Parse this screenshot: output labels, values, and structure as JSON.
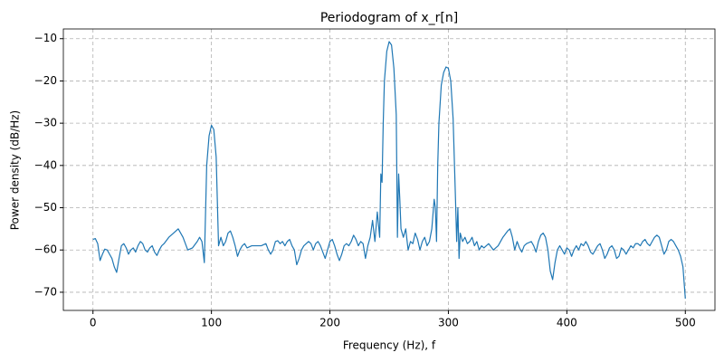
{
  "chart_data": {
    "type": "line",
    "title": "Periodogram of x_r[n]",
    "xlabel": "Frequency (Hz), f",
    "ylabel": "Power density (dB/Hz)",
    "color": "#1f77b4",
    "grid": true,
    "xlim": [
      -25,
      525
    ],
    "ylim": [
      -74.3,
      -7.7
    ],
    "xticks": [
      0,
      100,
      200,
      300,
      400,
      500
    ],
    "yticks": [
      {
        "value": -70,
        "label": "−70"
      },
      {
        "value": -60,
        "label": "−60"
      },
      {
        "value": -50,
        "label": "−50"
      },
      {
        "value": -40,
        "label": "−40"
      },
      {
        "value": -30,
        "label": "−30"
      },
      {
        "value": -20,
        "label": "−20"
      },
      {
        "value": -10,
        "label": "−10"
      }
    ],
    "x": [
      0,
      2,
      4,
      6,
      8,
      10,
      12,
      14,
      16,
      18,
      20,
      22,
      24,
      26,
      28,
      30,
      32,
      34,
      36,
      38,
      40,
      42,
      44,
      46,
      48,
      50,
      52,
      54,
      56,
      58,
      60,
      64,
      68,
      72,
      76,
      80,
      84,
      88,
      90,
      92,
      94,
      96,
      98,
      100,
      102,
      104,
      106,
      108,
      110,
      112,
      114,
      116,
      118,
      120,
      122,
      124,
      126,
      128,
      130,
      134,
      138,
      142,
      146,
      148,
      150,
      152,
      154,
      156,
      158,
      160,
      162,
      164,
      166,
      168,
      170,
      172,
      174,
      176,
      178,
      180,
      182,
      184,
      186,
      188,
      190,
      192,
      194,
      196,
      198,
      200,
      202,
      204,
      206,
      208,
      210,
      212,
      214,
      216,
      218,
      220,
      222,
      224,
      226,
      228,
      230,
      232,
      234,
      236,
      238,
      240,
      242,
      243,
      244,
      245,
      246,
      248,
      250,
      252,
      254,
      256,
      257,
      258,
      259,
      260,
      262,
      264,
      266,
      268,
      270,
      272,
      274,
      276,
      278,
      280,
      282,
      284,
      286,
      288,
      289,
      290,
      291,
      292,
      294,
      296,
      298,
      300,
      302,
      304,
      306,
      307,
      308,
      309,
      310,
      312,
      314,
      316,
      318,
      320,
      322,
      324,
      326,
      328,
      330,
      334,
      338,
      342,
      346,
      350,
      352,
      354,
      356,
      358,
      360,
      362,
      364,
      366,
      370,
      372,
      374,
      376,
      378,
      380,
      382,
      384,
      386,
      388,
      390,
      392,
      394,
      396,
      398,
      400,
      402,
      404,
      406,
      408,
      410,
      412,
      414,
      416,
      418,
      420,
      422,
      424,
      426,
      428,
      430,
      432,
      434,
      436,
      438,
      440,
      442,
      444,
      446,
      448,
      450,
      452,
      454,
      456,
      458,
      460,
      462,
      464,
      466,
      468,
      470,
      472,
      474,
      476,
      478,
      480,
      482,
      484,
      486,
      488,
      490,
      492,
      494,
      496,
      498,
      500
    ],
    "values": [
      -57.5,
      -57.3,
      -58.5,
      -62.5,
      -61,
      -59.8,
      -60,
      -61,
      -62,
      -64,
      -65.3,
      -62,
      -59,
      -58.5,
      -59.5,
      -61,
      -60,
      -59.5,
      -60.5,
      -59,
      -58,
      -58.5,
      -60,
      -60.5,
      -59.5,
      -59,
      -60.5,
      -61.3,
      -60,
      -59,
      -58.5,
      -57,
      -56,
      -55,
      -57,
      -60,
      -59.5,
      -58,
      -57,
      -58,
      -63,
      -40,
      -33,
      -30.5,
      -31.5,
      -38,
      -59,
      -57,
      -59,
      -58,
      -56,
      -55.5,
      -57,
      -59,
      -61.5,
      -60,
      -59,
      -58.5,
      -59.5,
      -59,
      -59,
      -59,
      -58.5,
      -60,
      -61,
      -60,
      -58,
      -57.8,
      -58.5,
      -58,
      -59,
      -58,
      -57.5,
      -59,
      -60,
      -63.5,
      -62,
      -60,
      -59,
      -58.5,
      -58,
      -58.5,
      -60,
      -58.5,
      -58,
      -59,
      -60.5,
      -62,
      -60,
      -58,
      -57.5,
      -59,
      -61,
      -62.5,
      -61,
      -59,
      -58.5,
      -59,
      -58,
      -56.5,
      -57.5,
      -59,
      -58,
      -58.5,
      -62,
      -59,
      -57,
      -53,
      -58,
      -51,
      -57,
      -42,
      -44,
      -30,
      -20,
      -13,
      -10.7,
      -11.5,
      -17,
      -28,
      -57,
      -42,
      -48,
      -55,
      -57,
      -55,
      -60,
      -58,
      -58.5,
      -56,
      -57.5,
      -60,
      -58,
      -57,
      -59,
      -58,
      -55,
      -48,
      -50,
      -58,
      -40,
      -30,
      -21,
      -18,
      -16.7,
      -17,
      -20,
      -29,
      -48,
      -58,
      -50,
      -62,
      -56,
      -58,
      -57,
      -58.5,
      -58,
      -57,
      -59,
      -58,
      -60,
      -59,
      -59.5,
      -58.5,
      -60,
      -59,
      -57,
      -55.5,
      -55,
      -57,
      -60,
      -58,
      -59.5,
      -60.5,
      -59,
      -58.5,
      -58,
      -59,
      -60.5,
      -58,
      -56.5,
      -56,
      -57,
      -60,
      -65,
      -67,
      -63,
      -60,
      -59,
      -60,
      -61,
      -59.5,
      -60,
      -61.5,
      -60,
      -59,
      -60,
      -58.5,
      -59,
      -58,
      -59,
      -60.5,
      -61,
      -60,
      -59,
      -58.5,
      -60,
      -62,
      -61,
      -59.5,
      -59,
      -60,
      -62,
      -61.5,
      -59.5,
      -60,
      -61,
      -60,
      -59,
      -59.5,
      -58.5,
      -58.5,
      -59,
      -58,
      -57.5,
      -58.5,
      -59,
      -58,
      -57,
      -56.5,
      -57,
      -59,
      -61,
      -60,
      -58,
      -57.5,
      -58,
      -59,
      -60,
      -61.5,
      -64,
      -71.5
    ]
  }
}
